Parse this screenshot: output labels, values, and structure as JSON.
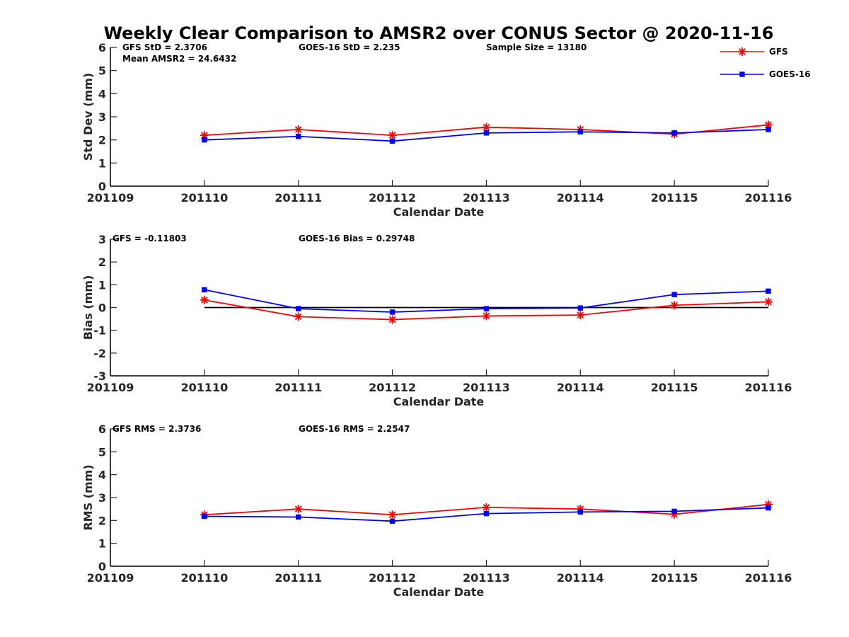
{
  "figure": {
    "title": "Weekly Clear Comparison to AMSR2 over CONUS Sector @ 2020-11-16"
  },
  "legend": {
    "entries": [
      {
        "label": "GFS",
        "color": "#ff0000",
        "marker": "asterisk"
      },
      {
        "label": "GOES-16",
        "color": "#0000ff",
        "marker": "square"
      }
    ],
    "placement": "top-right"
  },
  "chart_data": [
    {
      "type": "line",
      "title": "",
      "xlabel": "Calendar Date",
      "ylabel": "Std Dev (mm)",
      "categories": [
        "201109",
        "201110",
        "201111",
        "201112",
        "201113",
        "201114",
        "201115",
        "201116"
      ],
      "ylim": [
        0,
        6
      ],
      "yticks": [
        "0",
        "1",
        "2",
        "3",
        "4",
        "5",
        "6"
      ],
      "grid": false,
      "annotations": [
        "GFS StD = 2.3706",
        "Mean AMSR2 = 24.6432",
        "GOES-16 StD = 2.235",
        "Sample Size = 13180"
      ],
      "series": [
        {
          "name": "GFS",
          "color": "#ff0000",
          "marker": "asterisk",
          "values": [
            null,
            2.2,
            2.45,
            2.2,
            2.55,
            2.45,
            2.25,
            2.65
          ]
        },
        {
          "name": "GOES-16",
          "color": "#0000ff",
          "marker": "square",
          "values": [
            null,
            2.0,
            2.15,
            1.95,
            2.3,
            2.35,
            2.3,
            2.45
          ]
        }
      ]
    },
    {
      "type": "line",
      "title": "",
      "xlabel": "Calendar Date",
      "ylabel": "Bias (mm)",
      "categories": [
        "201109",
        "201110",
        "201111",
        "201112",
        "201113",
        "201114",
        "201115",
        "201116"
      ],
      "ylim": [
        -3,
        3
      ],
      "yticks": [
        "-3",
        "-2",
        "-1",
        "0",
        "1",
        "2",
        "3"
      ],
      "grid": false,
      "reference_line": 0,
      "annotations": [
        "GFS = -0.11803",
        "GOES-16 Bias  = 0.29748"
      ],
      "series": [
        {
          "name": "GFS",
          "color": "#ff0000",
          "marker": "asterisk",
          "values": [
            null,
            0.33,
            -0.4,
            -0.53,
            -0.37,
            -0.33,
            0.1,
            0.25
          ]
        },
        {
          "name": "GOES-16",
          "color": "#0000ff",
          "marker": "square",
          "values": [
            null,
            0.78,
            -0.05,
            -0.2,
            -0.05,
            -0.02,
            0.57,
            0.72
          ]
        }
      ]
    },
    {
      "type": "line",
      "title": "",
      "xlabel": "Calendar Date",
      "ylabel": "RMS (mm)",
      "categories": [
        "201109",
        "201110",
        "201111",
        "201112",
        "201113",
        "201114",
        "201115",
        "201116"
      ],
      "ylim": [
        0,
        6
      ],
      "yticks": [
        "0",
        "1",
        "2",
        "3",
        "4",
        "5",
        "6"
      ],
      "grid": false,
      "annotations": [
        "GFS RMS = 2.3736",
        "GOES-16 RMS = 2.2547"
      ],
      "series": [
        {
          "name": "GFS",
          "color": "#ff0000",
          "marker": "asterisk",
          "values": [
            null,
            2.25,
            2.5,
            2.25,
            2.57,
            2.5,
            2.27,
            2.7
          ]
        },
        {
          "name": "GOES-16",
          "color": "#0000ff",
          "marker": "square",
          "values": [
            null,
            2.18,
            2.15,
            1.97,
            2.3,
            2.37,
            2.4,
            2.55
          ]
        }
      ]
    }
  ]
}
